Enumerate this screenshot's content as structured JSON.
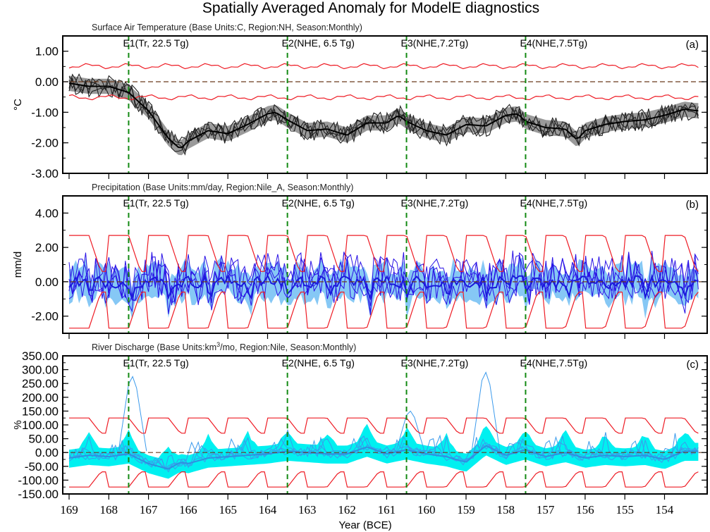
{
  "figure": {
    "title": "Spatially Averaged Anomaly for ModelE diagnostics",
    "xlabel": "Year (BCE)"
  },
  "chart_data": [
    {
      "type": "line",
      "panel_label": "(a)",
      "title": "Surface Air Temperature (Base Units:C, Region:NH, Season:Monthly)",
      "ylabel": "°C",
      "xlabel": "Year (BCE)",
      "xlim": [
        169,
        153.15
      ],
      "ylim": [
        -3.0,
        1.5
      ],
      "yticks": [
        1.0,
        0.0,
        -1.0,
        -2.0,
        -3.0
      ],
      "ytick_labels": [
        "1.00",
        "0.00",
        "-1.00",
        "-2.00",
        "-3.00"
      ],
      "xticks": [
        169,
        168,
        167,
        166,
        165,
        164,
        163,
        162,
        161,
        160,
        159,
        158,
        157,
        156,
        155,
        154
      ],
      "xtick_labels": [
        "169",
        "168",
        "167",
        "166",
        "165",
        "164",
        "163",
        "162",
        "161",
        "160",
        "159",
        "158",
        "157",
        "156",
        "155",
        "154"
      ],
      "events": [
        {
          "x": 167.5,
          "label": "E1(Tr, 22.5 Tg)"
        },
        {
          "x": 163.5,
          "label": "E2(NHE, 6.5 Tg)"
        },
        {
          "x": 160.5,
          "label": "E3(NHE,7.2Tg)"
        },
        {
          "x": 157.5,
          "label": "E4(NHE,7.5Tg)"
        }
      ],
      "colors": {
        "mean": "#000000",
        "members": "#222222",
        "spread": "#9a9a9a",
        "bounds": "#ee1c25",
        "zero": "#6b3a1e",
        "event": "#138a13"
      },
      "series": [
        {
          "name": "ensemble mean",
          "x": [
            169,
            168.5,
            168,
            167.5,
            167,
            166.5,
            166.2,
            166,
            165.5,
            165,
            164.5,
            164,
            163.8,
            163.5,
            163,
            162.5,
            162,
            161.5,
            161,
            160.7,
            160.5,
            160,
            159.5,
            159,
            158.5,
            158,
            157.7,
            157.5,
            157,
            156.5,
            156.2,
            156,
            155.5,
            155,
            154.5,
            154,
            153.5,
            153.2
          ],
          "values": [
            -0.05,
            -0.15,
            -0.15,
            -0.35,
            -0.95,
            -1.85,
            -2.2,
            -1.95,
            -1.6,
            -1.7,
            -1.4,
            -1.05,
            -1.0,
            -1.25,
            -1.6,
            -1.55,
            -1.75,
            -1.35,
            -1.35,
            -1.1,
            -1.3,
            -1.6,
            -1.75,
            -1.4,
            -1.45,
            -1.1,
            -1.05,
            -1.3,
            -1.5,
            -1.55,
            -1.9,
            -1.6,
            -1.4,
            -1.3,
            -1.25,
            -1.1,
            -0.9,
            -0.95
          ]
        },
        {
          "name": "upper bound",
          "type": "seasonal",
          "mean": 0.45,
          "amplitude": 0.12
        },
        {
          "name": "lower bound",
          "type": "seasonal",
          "mean": -0.45,
          "amplitude": 0.12
        },
        {
          "name": "spread half-width",
          "value": 0.25
        }
      ]
    },
    {
      "type": "line",
      "panel_label": "(b)",
      "title": "Precipitation (Base Units:mm/day, Region:Nile_A, Season:Monthly)",
      "ylabel": "mm/d",
      "xlabel": "Year (BCE)",
      "xlim": [
        169,
        153.15
      ],
      "ylim": [
        -3.0,
        5.0
      ],
      "yticks": [
        4.0,
        2.0,
        0.0,
        -2.0
      ],
      "ytick_labels": [
        "4.00",
        "2.00",
        "0.00",
        "-2.00"
      ],
      "minor_yticks": [
        3.0,
        1.0,
        -1.0
      ],
      "xticks": [
        169,
        168,
        167,
        166,
        165,
        164,
        163,
        162,
        161,
        160,
        159,
        158,
        157,
        156,
        155,
        154
      ],
      "events": [
        {
          "x": 167.5,
          "label": "E1(Tr, 22.5 Tg)"
        },
        {
          "x": 163.5,
          "label": "E2(NHE, 6.5 Tg)"
        },
        {
          "x": 160.5,
          "label": "E3(NHE,7.2Tg)"
        },
        {
          "x": 157.5,
          "label": "E4(NHE,7.5Tg)"
        }
      ],
      "colors": {
        "mean": "#1a1adb",
        "members": "#2a12e6",
        "spread": "#86c8f5",
        "bounds": "#ee1c25",
        "zero": "#6b3a1e",
        "event": "#138a13"
      },
      "series": [
        {
          "name": "upper bound",
          "type": "seasonal_peak",
          "peak": 2.7,
          "trough": 0.6,
          "shoulder": 1.8
        },
        {
          "name": "lower bound",
          "type": "seasonal_peak",
          "peak": -2.7,
          "trough": -0.6,
          "shoulder": -1.8
        },
        {
          "name": "ensemble mean",
          "range": [
            -1.2,
            0.7
          ]
        },
        {
          "name": "member max",
          "value": 3.3
        }
      ]
    },
    {
      "type": "line",
      "panel_label": "(c)",
      "title": "River Discharge (Base Units:km³/mo, Region:Nile, Season:Monthly)",
      "ylabel": "%",
      "xlabel": "Year (BCE)",
      "xlim": [
        169,
        153.15
      ],
      "ylim": [
        -150,
        350
      ],
      "yticks": [
        350,
        300,
        250,
        200,
        150,
        100,
        50,
        0,
        -50,
        -100,
        -150
      ],
      "ytick_labels": [
        "350.00",
        "300.00",
        "250.00",
        "200.00",
        "150.00",
        "100.00",
        "50.00",
        "0.00",
        "-50.00",
        "-100.00",
        "-150.00"
      ],
      "xticks": [
        169,
        168,
        167,
        166,
        165,
        164,
        163,
        162,
        161,
        160,
        159,
        158,
        157,
        156,
        155,
        154
      ],
      "xtick_labels": [
        "169",
        "168",
        "167",
        "166",
        "165",
        "164",
        "163",
        "162",
        "161",
        "160",
        "159",
        "158",
        "157",
        "156",
        "155",
        "154"
      ],
      "events": [
        {
          "x": 167.5,
          "label": "E1(Tr, 22.5 Tg)"
        },
        {
          "x": 163.5,
          "label": "E2(NHE, 6.5 Tg)"
        },
        {
          "x": 160.5,
          "label": "E3(NHE,7.2Tg)"
        },
        {
          "x": 157.5,
          "label": "E4(NHE,7.5Tg)"
        }
      ],
      "colors": {
        "mean": "#2f8fe0",
        "members": "#3b9aec",
        "spread": "#00f0f0",
        "bounds": "#ee1c25",
        "zero": "#6b3a1e",
        "event": "#138a13"
      },
      "series": [
        {
          "name": "upper bound",
          "type": "seasonal_peak",
          "peak": 125,
          "trough": 70
        },
        {
          "name": "lower bound",
          "type": "seasonal_peak",
          "peak": -125,
          "trough": -70
        },
        {
          "name": "ensemble mean",
          "x": [
            169,
            168.5,
            168,
            167.5,
            167,
            166.5,
            166.2,
            166,
            165.5,
            165,
            164.5,
            164,
            163.5,
            163,
            162.5,
            162,
            161.5,
            161,
            160.5,
            160,
            159.5,
            159,
            158.5,
            158,
            157.5,
            157,
            156.5,
            156,
            155.5,
            155,
            154.5,
            154,
            153.5,
            153.2
          ],
          "values": [
            -20,
            -10,
            -15,
            -5,
            -40,
            -60,
            -35,
            -40,
            -20,
            -15,
            -10,
            -5,
            5,
            0,
            -5,
            -5,
            20,
            -5,
            10,
            -5,
            -15,
            -35,
            25,
            -10,
            10,
            -15,
            0,
            -20,
            -10,
            -15,
            -10,
            -25,
            5,
            5
          ]
        },
        {
          "name": "member peaks",
          "values": [
            {
              "x": 167.4,
              "y": 275
            },
            {
              "x": 158.5,
              "y": 290
            },
            {
              "x": 160.4,
              "y": 150
            }
          ]
        }
      ]
    }
  ]
}
